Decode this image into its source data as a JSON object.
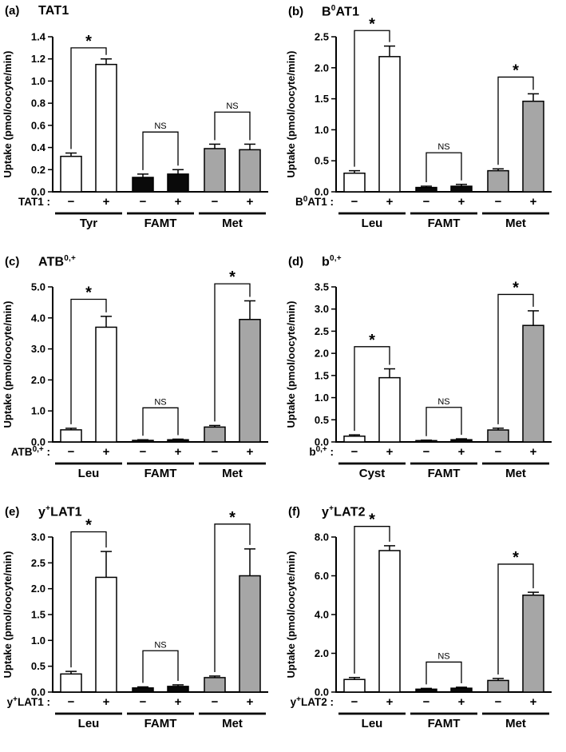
{
  "figure": {
    "background": "#ffffff"
  },
  "chart_data": [
    {
      "type": "bar",
      "panel": "(a)",
      "title_parts": [
        {
          "t": "TAT1"
        }
      ],
      "row_label_parts": [
        {
          "t": "TAT1 :"
        }
      ],
      "ylabel": "Uptake (pmol/oocyte/min)",
      "ylim": [
        0,
        1.4
      ],
      "yticks": [
        0,
        0.2,
        0.4,
        0.6,
        0.8,
        1.0,
        1.2,
        1.4
      ],
      "groups": [
        {
          "name": "Tyr",
          "color": "#ffffff",
          "bars": [
            {
              "x_label": "−",
              "value": 0.32,
              "err": 0.03
            },
            {
              "x_label": "+",
              "value": 1.15,
              "err": 0.05
            }
          ],
          "sig": {
            "label": "*",
            "y": 1.3
          }
        },
        {
          "name": "FAMT",
          "color": "#0a0a0a",
          "bars": [
            {
              "x_label": "−",
              "value": 0.13,
              "err": 0.03
            },
            {
              "x_label": "+",
              "value": 0.16,
              "err": 0.04
            }
          ],
          "sig": {
            "label": "NS",
            "y": 0.54
          }
        },
        {
          "name": "Met",
          "color": "#a6a6a6",
          "bars": [
            {
              "x_label": "−",
              "value": 0.39,
              "err": 0.04
            },
            {
              "x_label": "+",
              "value": 0.38,
              "err": 0.05
            }
          ],
          "sig": {
            "label": "NS",
            "y": 0.72
          }
        }
      ]
    },
    {
      "type": "bar",
      "panel": "(b)",
      "title_parts": [
        {
          "t": "B"
        },
        {
          "t": "0",
          "sup": true
        },
        {
          "t": "AT1"
        }
      ],
      "row_label_parts": [
        {
          "t": "B"
        },
        {
          "t": "0",
          "sup": true
        },
        {
          "t": "AT1 :"
        }
      ],
      "ylabel": "Uptake (pmol/oocyte/min)",
      "ylim": [
        0,
        2.5
      ],
      "yticks": [
        0,
        0.5,
        1.0,
        1.5,
        2.0,
        2.5
      ],
      "groups": [
        {
          "name": "Leu",
          "color": "#ffffff",
          "bars": [
            {
              "x_label": "−",
              "value": 0.3,
              "err": 0.04
            },
            {
              "x_label": "+",
              "value": 2.18,
              "err": 0.17
            }
          ],
          "sig": {
            "label": "*",
            "y": 2.6
          }
        },
        {
          "name": "FAMT",
          "color": "#0a0a0a",
          "bars": [
            {
              "x_label": "−",
              "value": 0.07,
              "err": 0.02
            },
            {
              "x_label": "+",
              "value": 0.09,
              "err": 0.03
            }
          ],
          "sig": {
            "label": "NS",
            "y": 0.63
          }
        },
        {
          "name": "Met",
          "color": "#a6a6a6",
          "bars": [
            {
              "x_label": "−",
              "value": 0.34,
              "err": 0.03
            },
            {
              "x_label": "+",
              "value": 1.46,
              "err": 0.12
            }
          ],
          "sig": {
            "label": "*",
            "y": 1.85
          }
        }
      ]
    },
    {
      "type": "bar",
      "panel": "(c)",
      "title_parts": [
        {
          "t": "ATB"
        },
        {
          "t": "0,+",
          "sup": true
        }
      ],
      "row_label_parts": [
        {
          "t": "ATB"
        },
        {
          "t": "0,+",
          "sup": true
        },
        {
          "t": " :"
        }
      ],
      "ylabel": "Uptake (pmol/oocyte/min)",
      "ylim": [
        0,
        5.0
      ],
      "yticks": [
        0,
        1.0,
        2.0,
        3.0,
        4.0,
        5.0
      ],
      "groups": [
        {
          "name": "Leu",
          "color": "#ffffff",
          "bars": [
            {
              "x_label": "−",
              "value": 0.39,
              "err": 0.05
            },
            {
              "x_label": "+",
              "value": 3.7,
              "err": 0.35
            }
          ],
          "sig": {
            "label": "*",
            "y": 4.6
          }
        },
        {
          "name": "FAMT",
          "color": "#0a0a0a",
          "bars": [
            {
              "x_label": "−",
              "value": 0.05,
              "err": 0.02
            },
            {
              "x_label": "+",
              "value": 0.07,
              "err": 0.02
            }
          ],
          "sig": {
            "label": "NS",
            "y": 1.1
          }
        },
        {
          "name": "Met",
          "color": "#a6a6a6",
          "bars": [
            {
              "x_label": "−",
              "value": 0.48,
              "err": 0.05
            },
            {
              "x_label": "+",
              "value": 3.95,
              "err": 0.6
            }
          ],
          "sig": {
            "label": "*",
            "y": 5.1
          }
        }
      ]
    },
    {
      "type": "bar",
      "panel": "(d)",
      "title_parts": [
        {
          "t": "b"
        },
        {
          "t": "0,+",
          "sup": true
        }
      ],
      "row_label_parts": [
        {
          "t": "b"
        },
        {
          "t": "0,+",
          "sup": true
        },
        {
          "t": " :"
        }
      ],
      "ylabel": "Uptake (pmol/oocyte/min)",
      "ylim": [
        0,
        3.5
      ],
      "yticks": [
        0,
        0.5,
        1.0,
        1.5,
        2.0,
        2.5,
        3.0,
        3.5
      ],
      "groups": [
        {
          "name": "Cyst",
          "color": "#ffffff",
          "bars": [
            {
              "x_label": "−",
              "value": 0.13,
              "err": 0.03
            },
            {
              "x_label": "+",
              "value": 1.45,
              "err": 0.2
            }
          ],
          "sig": {
            "label": "*",
            "y": 2.15
          }
        },
        {
          "name": "FAMT",
          "color": "#0a0a0a",
          "bars": [
            {
              "x_label": "−",
              "value": 0.03,
              "err": 0.01
            },
            {
              "x_label": "+",
              "value": 0.05,
              "err": 0.02
            }
          ],
          "sig": {
            "label": "NS",
            "y": 0.78
          }
        },
        {
          "name": "Met",
          "color": "#a6a6a6",
          "bars": [
            {
              "x_label": "−",
              "value": 0.27,
              "err": 0.04
            },
            {
              "x_label": "+",
              "value": 2.63,
              "err": 0.33
            }
          ],
          "sig": {
            "label": "*",
            "y": 3.33
          }
        }
      ]
    },
    {
      "type": "bar",
      "panel": "(e)",
      "title_parts": [
        {
          "t": "y"
        },
        {
          "t": "+",
          "sup": true
        },
        {
          "t": "LAT1"
        }
      ],
      "row_label_parts": [
        {
          "t": "y"
        },
        {
          "t": "+",
          "sup": true
        },
        {
          "t": "LAT1 :"
        }
      ],
      "ylabel": "Uptake (pmol/oocyte/min)",
      "ylim": [
        0,
        3.0
      ],
      "yticks": [
        0,
        0.5,
        1.0,
        1.5,
        2.0,
        2.5,
        3.0
      ],
      "groups": [
        {
          "name": "Leu",
          "color": "#ffffff",
          "bars": [
            {
              "x_label": "−",
              "value": 0.35,
              "err": 0.05
            },
            {
              "x_label": "+",
              "value": 2.22,
              "err": 0.5
            }
          ],
          "sig": {
            "label": "*",
            "y": 3.1
          }
        },
        {
          "name": "FAMT",
          "color": "#0a0a0a",
          "bars": [
            {
              "x_label": "−",
              "value": 0.08,
              "err": 0.02
            },
            {
              "x_label": "+",
              "value": 0.11,
              "err": 0.03
            }
          ],
          "sig": {
            "label": "NS",
            "y": 0.8
          }
        },
        {
          "name": "Met",
          "color": "#a6a6a6",
          "bars": [
            {
              "x_label": "−",
              "value": 0.28,
              "err": 0.03
            },
            {
              "x_label": "+",
              "value": 2.25,
              "err": 0.52
            }
          ],
          "sig": {
            "label": "*",
            "y": 3.25
          }
        }
      ]
    },
    {
      "type": "bar",
      "panel": "(f)",
      "title_parts": [
        {
          "t": "y"
        },
        {
          "t": "+",
          "sup": true
        },
        {
          "t": "LAT2"
        }
      ],
      "row_label_parts": [
        {
          "t": "y"
        },
        {
          "t": "+",
          "sup": true
        },
        {
          "t": "LAT2 :"
        }
      ],
      "ylabel": "Uptake (pmol/oocyte/min)",
      "ylim": [
        0,
        8.0
      ],
      "yticks": [
        0,
        2.0,
        4.0,
        6.0,
        8.0
      ],
      "groups": [
        {
          "name": "Leu",
          "color": "#ffffff",
          "bars": [
            {
              "x_label": "−",
              "value": 0.65,
              "err": 0.1
            },
            {
              "x_label": "+",
              "value": 7.3,
              "err": 0.25
            }
          ],
          "sig": {
            "label": "*",
            "y": 8.55
          }
        },
        {
          "name": "FAMT",
          "color": "#0a0a0a",
          "bars": [
            {
              "x_label": "−",
              "value": 0.15,
              "err": 0.04
            },
            {
              "x_label": "+",
              "value": 0.2,
              "err": 0.05
            }
          ],
          "sig": {
            "label": "NS",
            "y": 1.55
          }
        },
        {
          "name": "Met",
          "color": "#a6a6a6",
          "bars": [
            {
              "x_label": "−",
              "value": 0.6,
              "err": 0.1
            },
            {
              "x_label": "+",
              "value": 5.0,
              "err": 0.15
            }
          ],
          "sig": {
            "label": "*",
            "y": 6.6
          }
        }
      ]
    }
  ]
}
